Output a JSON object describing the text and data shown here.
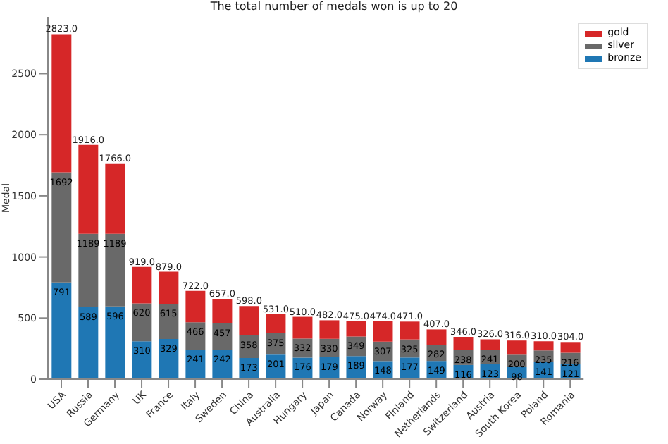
{
  "chart_data": {
    "type": "bar",
    "title": "The total number of medals won is up to 20",
    "ylabel": "Medal",
    "categories": [
      "USA",
      "Russia",
      "Germany",
      "UK",
      "France",
      "Italy",
      "Sweden",
      "China",
      "Australia",
      "Hungary",
      "Japan",
      "Canada",
      "Norway",
      "Finland",
      "Netherlands",
      "Switzerland",
      "Austria",
      "South Korea",
      "Poland",
      "Romania"
    ],
    "stacked": true,
    "series": [
      {
        "name": "bronze",
        "color": "#1f77b4",
        "values": [
          791,
          589,
          596,
          310,
          329,
          241,
          242,
          173,
          201,
          176,
          179,
          189,
          148,
          177,
          149,
          116,
          123,
          98,
          141,
          121
        ],
        "value_labels": [
          "791",
          "589",
          "596",
          "310",
          "329",
          "241",
          "242",
          "173",
          "201",
          "176",
          "179",
          "189",
          "148",
          "177",
          "149",
          "116",
          "123",
          "98",
          "141",
          "121"
        ]
      },
      {
        "name": "silver",
        "color": "#696969",
        "values": [
          901,
          600,
          593,
          310,
          286,
          225,
          215,
          185,
          174,
          156,
          151,
          160,
          159,
          148,
          133,
          122,
          118,
          102,
          94,
          95
        ]
      },
      {
        "name": "gold",
        "color": "#d62728",
        "values": [
          1131,
          727,
          577,
          299,
          264,
          256,
          200,
          240,
          156,
          178,
          152,
          126,
          167,
          146,
          125,
          108,
          85,
          116,
          75,
          88
        ]
      }
    ],
    "totals": [
      "2823.0",
      "1916.0",
      "1766.0",
      "919.0",
      "879.0",
      "722.0",
      "657.0",
      "598.0",
      "531.0",
      "510.0",
      "482.0",
      "475.0",
      "474.0",
      "471.0",
      "407.0",
      "346.0",
      "326.0",
      "316.0",
      "310.0",
      "304.0"
    ],
    "annotations": [
      {
        "text": "1692",
        "x": "USA",
        "y": 1692
      },
      {
        "text": "1189",
        "x": "Russia",
        "y": 1189
      },
      {
        "text": "1189",
        "x": "Germany",
        "y": 1189
      },
      {
        "text": "620",
        "x": "UK",
        "y": 620
      },
      {
        "text": "615",
        "x": "France",
        "y": 615
      },
      {
        "text": "466",
        "x": "Italy",
        "y": 466
      },
      {
        "text": "457",
        "x": "Sweden",
        "y": 457
      },
      {
        "text": "358",
        "x": "China",
        "y": 358
      },
      {
        "text": "375",
        "x": "Australia",
        "y": 375
      },
      {
        "text": "332",
        "x": "Hungary",
        "y": 332
      },
      {
        "text": "330",
        "x": "Japan",
        "y": 330
      },
      {
        "text": "349",
        "x": "Canada",
        "y": 349
      },
      {
        "text": "307",
        "x": "Norway",
        "y": 307
      },
      {
        "text": "325",
        "x": "Finland",
        "y": 325
      },
      {
        "text": "282",
        "x": "Netherlands",
        "y": 282
      },
      {
        "text": "238",
        "x": "Switzerland",
        "y": 238
      },
      {
        "text": "241",
        "x": "Austria",
        "y": 241
      },
      {
        "text": "200",
        "x": "South Korea",
        "y": 200
      },
      {
        "text": "235",
        "x": "Poland",
        "y": 235
      },
      {
        "text": "216",
        "x": "Romania",
        "y": 216
      }
    ],
    "ylim": [
      0,
      2964
    ],
    "yticks": [
      0,
      500,
      1000,
      1500,
      2000,
      2500
    ],
    "legend": "top right",
    "grid": false
  }
}
